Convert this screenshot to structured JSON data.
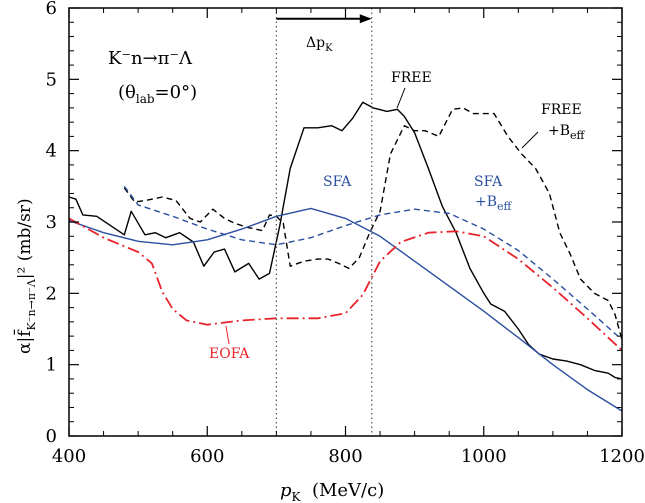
{
  "chart_data": {
    "type": "line",
    "title": "",
    "xlabel": "p_K  (MeV/c)",
    "ylabel": "α|f̄_{K⁻n→π⁻Λ}|² (mb/sr)",
    "xlim": [
      400,
      1200
    ],
    "ylim": [
      0,
      6
    ],
    "x_ticks": [
      400,
      600,
      800,
      1000,
      1200
    ],
    "y_ticks": [
      0,
      1,
      2,
      3,
      4,
      5,
      6
    ],
    "grid": false,
    "reaction_label": "K⁻n→π⁻Λ",
    "angle_label": "(θ_lab=0°)",
    "delta_label": "Δp_K",
    "vlines": [
      700,
      838
    ],
    "arrow": {
      "from": 700,
      "to": 838,
      "y": 5.85
    },
    "series": [
      {
        "name": "FREE",
        "color": "#000000",
        "dash": "solid",
        "points": [
          [
            400,
            3.35
          ],
          [
            410,
            3.32
          ],
          [
            420,
            3.1
          ],
          [
            440,
            3.08
          ],
          [
            460,
            2.95
          ],
          [
            480,
            2.82
          ],
          [
            490,
            3.15
          ],
          [
            510,
            2.82
          ],
          [
            525,
            2.85
          ],
          [
            540,
            2.78
          ],
          [
            560,
            2.85
          ],
          [
            580,
            2.72
          ],
          [
            595,
            2.38
          ],
          [
            610,
            2.58
          ],
          [
            625,
            2.62
          ],
          [
            640,
            2.3
          ],
          [
            660,
            2.42
          ],
          [
            675,
            2.2
          ],
          [
            690,
            2.28
          ],
          [
            705,
            2.95
          ],
          [
            720,
            3.75
          ],
          [
            740,
            4.32
          ],
          [
            760,
            4.32
          ],
          [
            780,
            4.35
          ],
          [
            795,
            4.28
          ],
          [
            810,
            4.45
          ],
          [
            825,
            4.68
          ],
          [
            840,
            4.6
          ],
          [
            860,
            4.55
          ],
          [
            875,
            4.58
          ],
          [
            885,
            4.48
          ],
          [
            900,
            4.25
          ],
          [
            920,
            3.75
          ],
          [
            940,
            3.22
          ],
          [
            960,
            2.85
          ],
          [
            980,
            2.35
          ],
          [
            1000,
            2.0
          ],
          [
            1010,
            1.85
          ],
          [
            1030,
            1.75
          ],
          [
            1050,
            1.5
          ],
          [
            1065,
            1.28
          ],
          [
            1080,
            1.15
          ],
          [
            1100,
            1.08
          ],
          [
            1120,
            1.05
          ],
          [
            1140,
            1.0
          ],
          [
            1160,
            0.92
          ],
          [
            1180,
            0.88
          ],
          [
            1190,
            0.82
          ],
          [
            1200,
            0.8
          ]
        ]
      },
      {
        "name": "FREE +B_eff",
        "color": "#000000",
        "dash": "dashed",
        "points": [
          [
            480,
            3.48
          ],
          [
            495,
            3.28
          ],
          [
            510,
            3.3
          ],
          [
            520,
            3.32
          ],
          [
            535,
            3.35
          ],
          [
            555,
            3.3
          ],
          [
            575,
            3.05
          ],
          [
            590,
            3.0
          ],
          [
            608,
            3.18
          ],
          [
            625,
            3.05
          ],
          [
            640,
            2.98
          ],
          [
            660,
            2.92
          ],
          [
            680,
            2.88
          ],
          [
            690,
            3.1
          ],
          [
            700,
            3.08
          ],
          [
            710,
            2.98
          ],
          [
            720,
            2.38
          ],
          [
            740,
            2.45
          ],
          [
            760,
            2.48
          ],
          [
            775,
            2.48
          ],
          [
            790,
            2.42
          ],
          [
            805,
            2.35
          ],
          [
            820,
            2.5
          ],
          [
            835,
            2.85
          ],
          [
            850,
            3.15
          ],
          [
            865,
            3.95
          ],
          [
            885,
            4.35
          ],
          [
            900,
            4.28
          ],
          [
            915,
            4.28
          ],
          [
            935,
            4.2
          ],
          [
            955,
            4.58
          ],
          [
            970,
            4.6
          ],
          [
            985,
            4.52
          ],
          [
            1000,
            4.52
          ],
          [
            1015,
            4.52
          ],
          [
            1035,
            4.2
          ],
          [
            1055,
            3.95
          ],
          [
            1075,
            3.75
          ],
          [
            1095,
            3.4
          ],
          [
            1110,
            2.85
          ],
          [
            1125,
            2.55
          ],
          [
            1140,
            2.2
          ],
          [
            1160,
            2.0
          ],
          [
            1180,
            1.9
          ],
          [
            1190,
            1.7
          ],
          [
            1200,
            1.35
          ]
        ]
      },
      {
        "name": "SFA",
        "color": "#2b4fa0",
        "dash": "solid",
        "points": [
          [
            400,
            3.02
          ],
          [
            450,
            2.85
          ],
          [
            500,
            2.73
          ],
          [
            550,
            2.68
          ],
          [
            600,
            2.75
          ],
          [
            650,
            2.9
          ],
          [
            700,
            3.08
          ],
          [
            750,
            3.19
          ],
          [
            800,
            3.05
          ],
          [
            850,
            2.8
          ],
          [
            900,
            2.45
          ],
          [
            950,
            2.1
          ],
          [
            1000,
            1.75
          ],
          [
            1050,
            1.38
          ],
          [
            1100,
            1.0
          ],
          [
            1150,
            0.65
          ],
          [
            1200,
            0.35
          ]
        ]
      },
      {
        "name": "SFA +B_eff",
        "color": "#2b4fa0",
        "dash": "dashed",
        "points": [
          [
            480,
            3.5
          ],
          [
            500,
            3.24
          ],
          [
            550,
            3.08
          ],
          [
            600,
            2.9
          ],
          [
            650,
            2.75
          ],
          [
            700,
            2.68
          ],
          [
            750,
            2.78
          ],
          [
            800,
            2.95
          ],
          [
            850,
            3.1
          ],
          [
            900,
            3.18
          ],
          [
            950,
            3.12
          ],
          [
            1000,
            2.9
          ],
          [
            1050,
            2.6
          ],
          [
            1100,
            2.2
          ],
          [
            1150,
            1.78
          ],
          [
            1200,
            1.35
          ]
        ]
      },
      {
        "name": "EOFA",
        "color": "#e8232b",
        "dash": "dashdot",
        "points": [
          [
            400,
            3.05
          ],
          [
            450,
            2.78
          ],
          [
            500,
            2.58
          ],
          [
            520,
            2.42
          ],
          [
            535,
            2.02
          ],
          [
            550,
            1.78
          ],
          [
            570,
            1.62
          ],
          [
            600,
            1.56
          ],
          [
            650,
            1.62
          ],
          [
            700,
            1.65
          ],
          [
            760,
            1.65
          ],
          [
            800,
            1.72
          ],
          [
            825,
            1.98
          ],
          [
            850,
            2.45
          ],
          [
            880,
            2.72
          ],
          [
            920,
            2.85
          ],
          [
            960,
            2.87
          ],
          [
            1000,
            2.8
          ],
          [
            1050,
            2.48
          ],
          [
            1100,
            2.08
          ],
          [
            1150,
            1.65
          ],
          [
            1200,
            1.2
          ]
        ]
      }
    ],
    "series_labels": {
      "free": "FREE",
      "free_beff_1": "FREE",
      "free_beff_2": "+B",
      "free_beff_sub": "eff",
      "sfa": "SFA",
      "sfa_beff_1": "SFA",
      "sfa_beff_2": "+B",
      "sfa_beff_sub": "eff",
      "eofa": "EOFA"
    }
  }
}
